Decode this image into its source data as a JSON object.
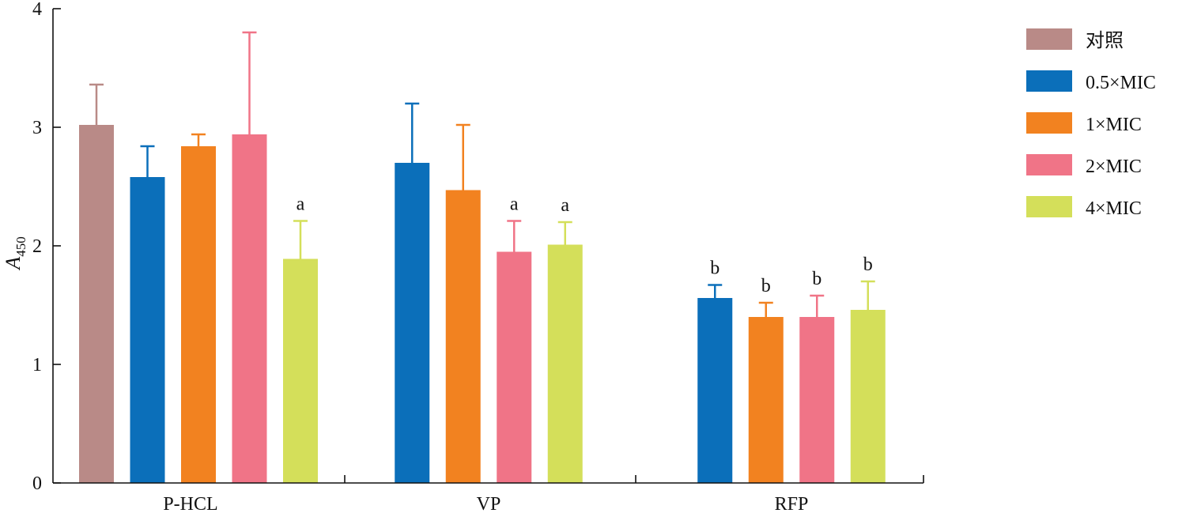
{
  "chart_data": {
    "type": "bar",
    "ylabel": "A",
    "ylabel_subscript": "450",
    "ylim": [
      0,
      4
    ],
    "yticks": [
      "0",
      "1",
      "2",
      "3",
      "4"
    ],
    "categories": [
      "P-HCL",
      "VP",
      "RFP"
    ],
    "legend_position": "right",
    "series": [
      {
        "name": "对照",
        "color": "#b98a87",
        "values": [
          3.02,
          null,
          null
        ],
        "errors": [
          0.34,
          null,
          null
        ],
        "sig": [
          "",
          "",
          ""
        ]
      },
      {
        "name": "0.5×MIC",
        "color": "#0b6fba",
        "values": [
          2.58,
          2.7,
          1.56
        ],
        "errors": [
          0.26,
          0.5,
          0.11
        ],
        "sig": [
          "",
          "",
          "b"
        ]
      },
      {
        "name": "1×MIC",
        "color": "#f28220",
        "values": [
          2.84,
          2.47,
          1.4
        ],
        "errors": [
          0.1,
          0.55,
          0.12
        ],
        "sig": [
          "",
          "",
          "b"
        ]
      },
      {
        "name": "2×MIC",
        "color": "#f07487",
        "values": [
          2.94,
          1.95,
          1.4
        ],
        "errors": [
          0.86,
          0.26,
          0.18
        ],
        "sig": [
          "",
          "a",
          "b"
        ]
      },
      {
        "name": "4×MIC",
        "color": "#d4df5a",
        "values": [
          1.89,
          2.01,
          1.46
        ],
        "errors": [
          0.32,
          0.19,
          0.24
        ],
        "sig": [
          "a",
          "a",
          "b"
        ]
      }
    ]
  }
}
